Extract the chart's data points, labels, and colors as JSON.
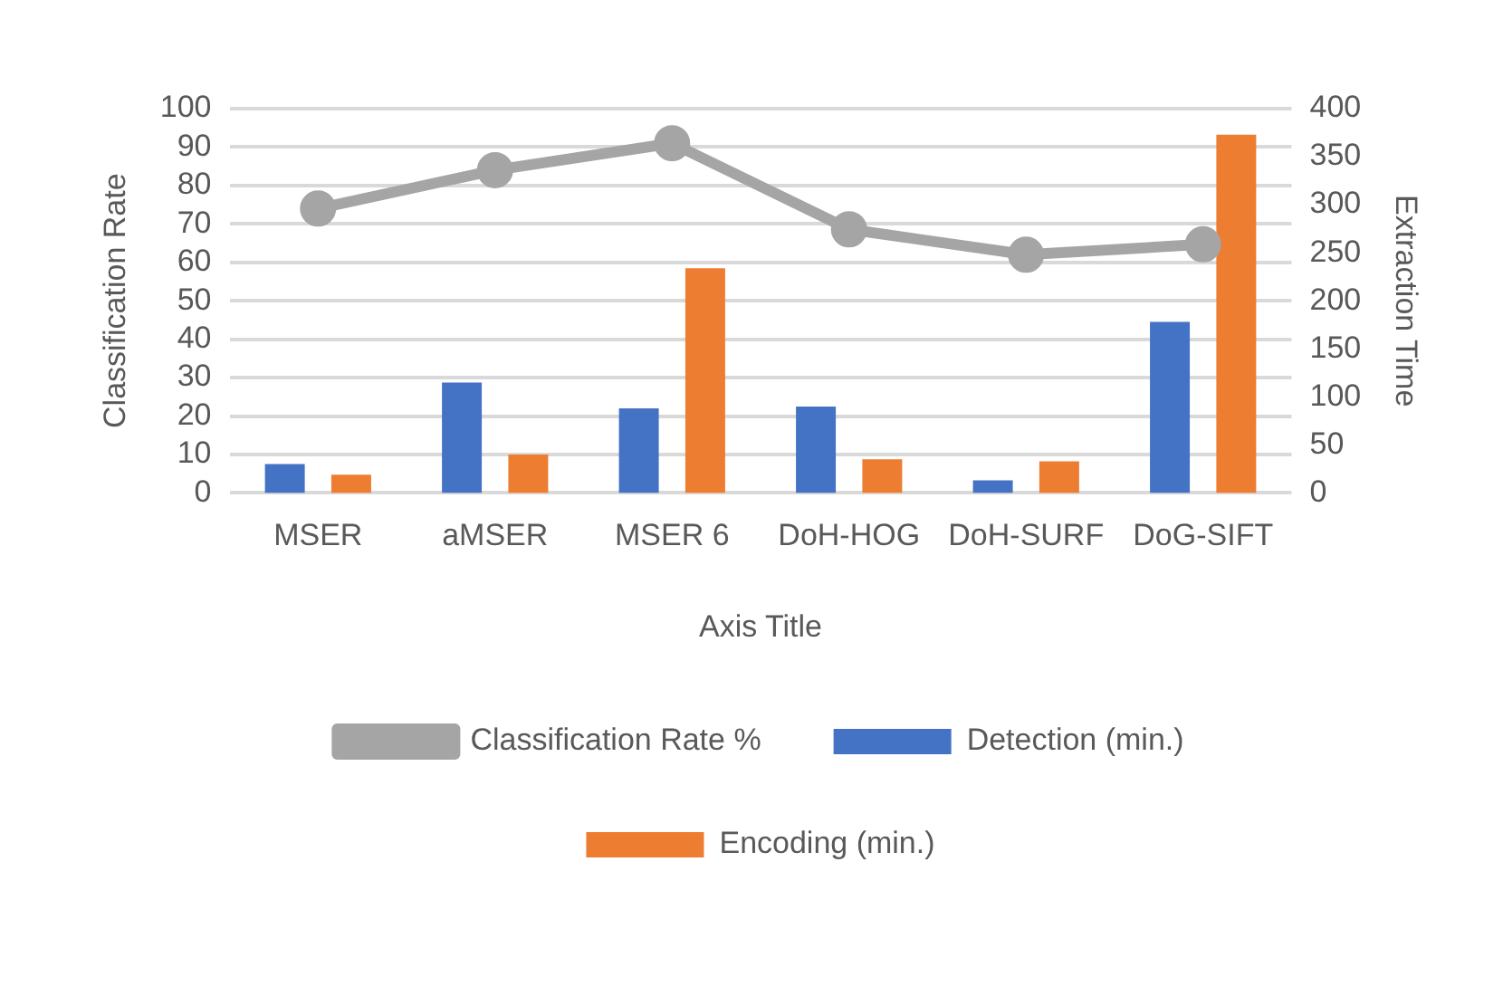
{
  "chart_data": {
    "type": "bar",
    "xlabel": "Axis Title",
    "ylabel": "Classification Rate",
    "y2label": "Extraction Time",
    "categories": [
      "MSER",
      "aMSER",
      "MSER 6",
      "DoH-HOG",
      "DoH-SURF",
      "DoG-SIFT"
    ],
    "series": [
      {
        "name": "Detection (min.)",
        "color": "#4472c4",
        "axis": "y2",
        "values": [
          30,
          115,
          88,
          90,
          13,
          178
        ]
      },
      {
        "name": "Encoding (min.)",
        "color": "#ed7d31",
        "axis": "y2",
        "values": [
          19,
          40,
          234,
          35,
          33,
          373
        ]
      },
      {
        "name": "Classification Rate %",
        "type": "line",
        "color": "#a5a5a5",
        "axis": "y",
        "values": [
          74,
          84,
          91,
          68.6,
          62,
          64.7
        ]
      }
    ],
    "ylim": [
      0,
      100
    ],
    "yticks": [
      0,
      10,
      20,
      30,
      40,
      50,
      60,
      70,
      80,
      90,
      100
    ],
    "y2lim": [
      0,
      400
    ],
    "y2ticks": [
      0,
      50,
      100,
      150,
      200,
      250,
      300,
      350,
      400
    ],
    "grid": "y",
    "legend": "bottom",
    "marker": "circle"
  }
}
